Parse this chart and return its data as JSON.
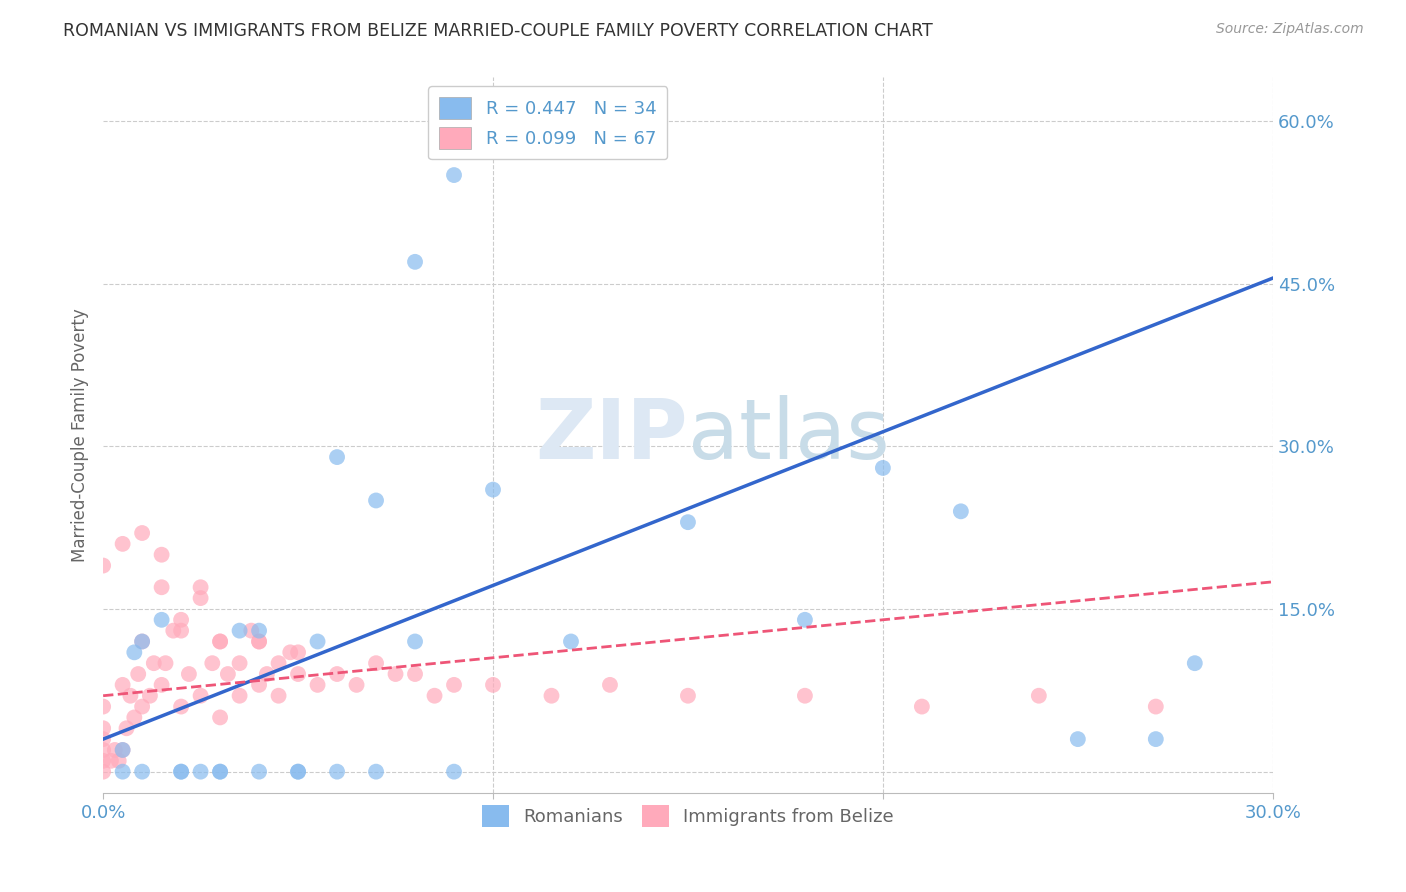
{
  "title": "ROMANIAN VS IMMIGRANTS FROM BELIZE MARRIED-COUPLE FAMILY POVERTY CORRELATION CHART",
  "source": "Source: ZipAtlas.com",
  "ylabel": "Married-Couple Family Poverty",
  "x_min": 0.0,
  "x_max": 0.3,
  "y_min": -0.02,
  "y_max": 0.64,
  "romanian_color": "#88bbee",
  "belize_color": "#ffaabb",
  "trend_romanian_color": "#3366cc",
  "trend_belize_color": "#ee5577",
  "watermark_color": "#dde8f0",
  "background_color": "#ffffff",
  "grid_color": "#cccccc",
  "axis_label_color": "#5599cc",
  "title_color": "#333333",
  "trend_rom_x0": 0.0,
  "trend_rom_y0": 0.03,
  "trend_rom_x1": 0.3,
  "trend_rom_y1": 0.455,
  "trend_bel_x0": 0.0,
  "trend_bel_y0": 0.07,
  "trend_bel_x1": 0.3,
  "trend_bel_y1": 0.175,
  "romanians_scatter_x": [
    0.005,
    0.008,
    0.01,
    0.015,
    0.02,
    0.025,
    0.03,
    0.035,
    0.04,
    0.05,
    0.055,
    0.06,
    0.07,
    0.08,
    0.09,
    0.1,
    0.12,
    0.15,
    0.18,
    0.2,
    0.22,
    0.25,
    0.28,
    0.08,
    0.09,
    0.005,
    0.01,
    0.02,
    0.03,
    0.04,
    0.05,
    0.06,
    0.07,
    0.27
  ],
  "romanians_scatter_y": [
    0.02,
    0.11,
    0.12,
    0.14,
    0.0,
    0.0,
    0.0,
    0.13,
    0.13,
    0.0,
    0.12,
    0.0,
    0.0,
    0.12,
    0.0,
    0.26,
    0.12,
    0.23,
    0.14,
    0.28,
    0.24,
    0.03,
    0.1,
    0.47,
    0.55,
    0.0,
    0.0,
    0.0,
    0.0,
    0.0,
    0.0,
    0.29,
    0.25,
    0.03
  ],
  "belize_scatter_x": [
    0.0,
    0.0,
    0.0,
    0.0,
    0.0,
    0.0,
    0.002,
    0.003,
    0.004,
    0.005,
    0.005,
    0.006,
    0.007,
    0.008,
    0.009,
    0.01,
    0.01,
    0.012,
    0.013,
    0.015,
    0.015,
    0.016,
    0.018,
    0.02,
    0.02,
    0.022,
    0.025,
    0.025,
    0.028,
    0.03,
    0.03,
    0.032,
    0.035,
    0.038,
    0.04,
    0.04,
    0.042,
    0.045,
    0.048,
    0.05,
    0.005,
    0.01,
    0.015,
    0.02,
    0.025,
    0.03,
    0.035,
    0.04,
    0.045,
    0.05,
    0.055,
    0.06,
    0.065,
    0.07,
    0.075,
    0.08,
    0.085,
    0.09,
    0.1,
    0.115,
    0.13,
    0.15,
    0.18,
    0.21,
    0.24,
    0.27,
    0.0
  ],
  "belize_scatter_y": [
    0.0,
    0.01,
    0.02,
    0.03,
    0.04,
    0.06,
    0.01,
    0.02,
    0.01,
    0.02,
    0.08,
    0.04,
    0.07,
    0.05,
    0.09,
    0.06,
    0.12,
    0.07,
    0.1,
    0.08,
    0.17,
    0.1,
    0.13,
    0.06,
    0.14,
    0.09,
    0.07,
    0.17,
    0.1,
    0.05,
    0.12,
    0.09,
    0.07,
    0.13,
    0.08,
    0.12,
    0.09,
    0.07,
    0.11,
    0.09,
    0.21,
    0.22,
    0.2,
    0.13,
    0.16,
    0.12,
    0.1,
    0.12,
    0.1,
    0.11,
    0.08,
    0.09,
    0.08,
    0.1,
    0.09,
    0.09,
    0.07,
    0.08,
    0.08,
    0.07,
    0.08,
    0.07,
    0.07,
    0.06,
    0.07,
    0.06,
    0.19
  ]
}
